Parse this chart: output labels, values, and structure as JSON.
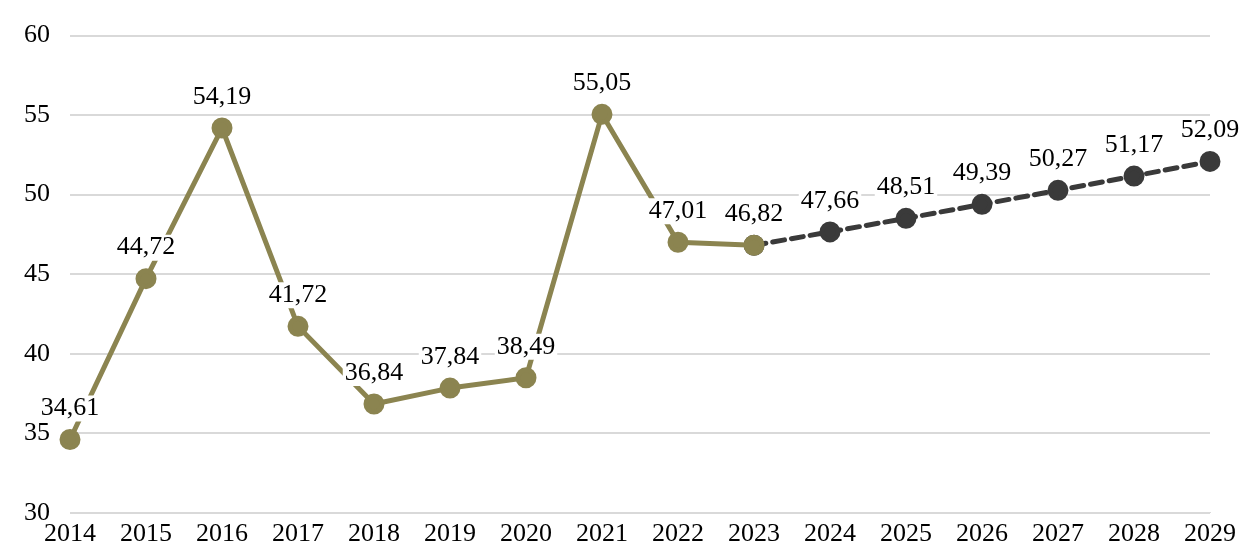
{
  "chart_data": {
    "type": "line",
    "categories": [
      "2014",
      "2015",
      "2016",
      "2017",
      "2018",
      "2019",
      "2020",
      "2021",
      "2022",
      "2023",
      "2024",
      "2025",
      "2026",
      "2027",
      "2028",
      "2029"
    ],
    "series": [
      {
        "color": "#8b8450",
        "marker": "circle",
        "line_style": "solid",
        "values": [
          34.61,
          44.72,
          54.19,
          41.72,
          36.84,
          37.84,
          38.49,
          55.05,
          47.01,
          46.82,
          null,
          null,
          null,
          null,
          null,
          null
        ],
        "value_labels": [
          "34,61",
          "44,72",
          "54,19",
          "41,72",
          "36,84",
          "37,84",
          "38,49",
          "55,05",
          "47,01",
          "46,82",
          null,
          null,
          null,
          null,
          null,
          null
        ]
      },
      {
        "color": "#3a3a3a",
        "marker": "circle",
        "line_style": "dashed",
        "values": [
          null,
          null,
          null,
          null,
          null,
          null,
          null,
          null,
          null,
          46.82,
          47.66,
          48.51,
          49.39,
          50.27,
          51.17,
          52.09
        ],
        "value_labels": [
          null,
          null,
          null,
          null,
          null,
          null,
          null,
          null,
          null,
          null,
          "47,66",
          "48,51",
          "49,39",
          "50,27",
          "51,17",
          "52,09"
        ]
      }
    ],
    "ylim": [
      30,
      60
    ],
    "yticks": [
      30,
      35,
      40,
      45,
      50,
      55,
      60
    ],
    "grid": "y",
    "legend": false
  }
}
